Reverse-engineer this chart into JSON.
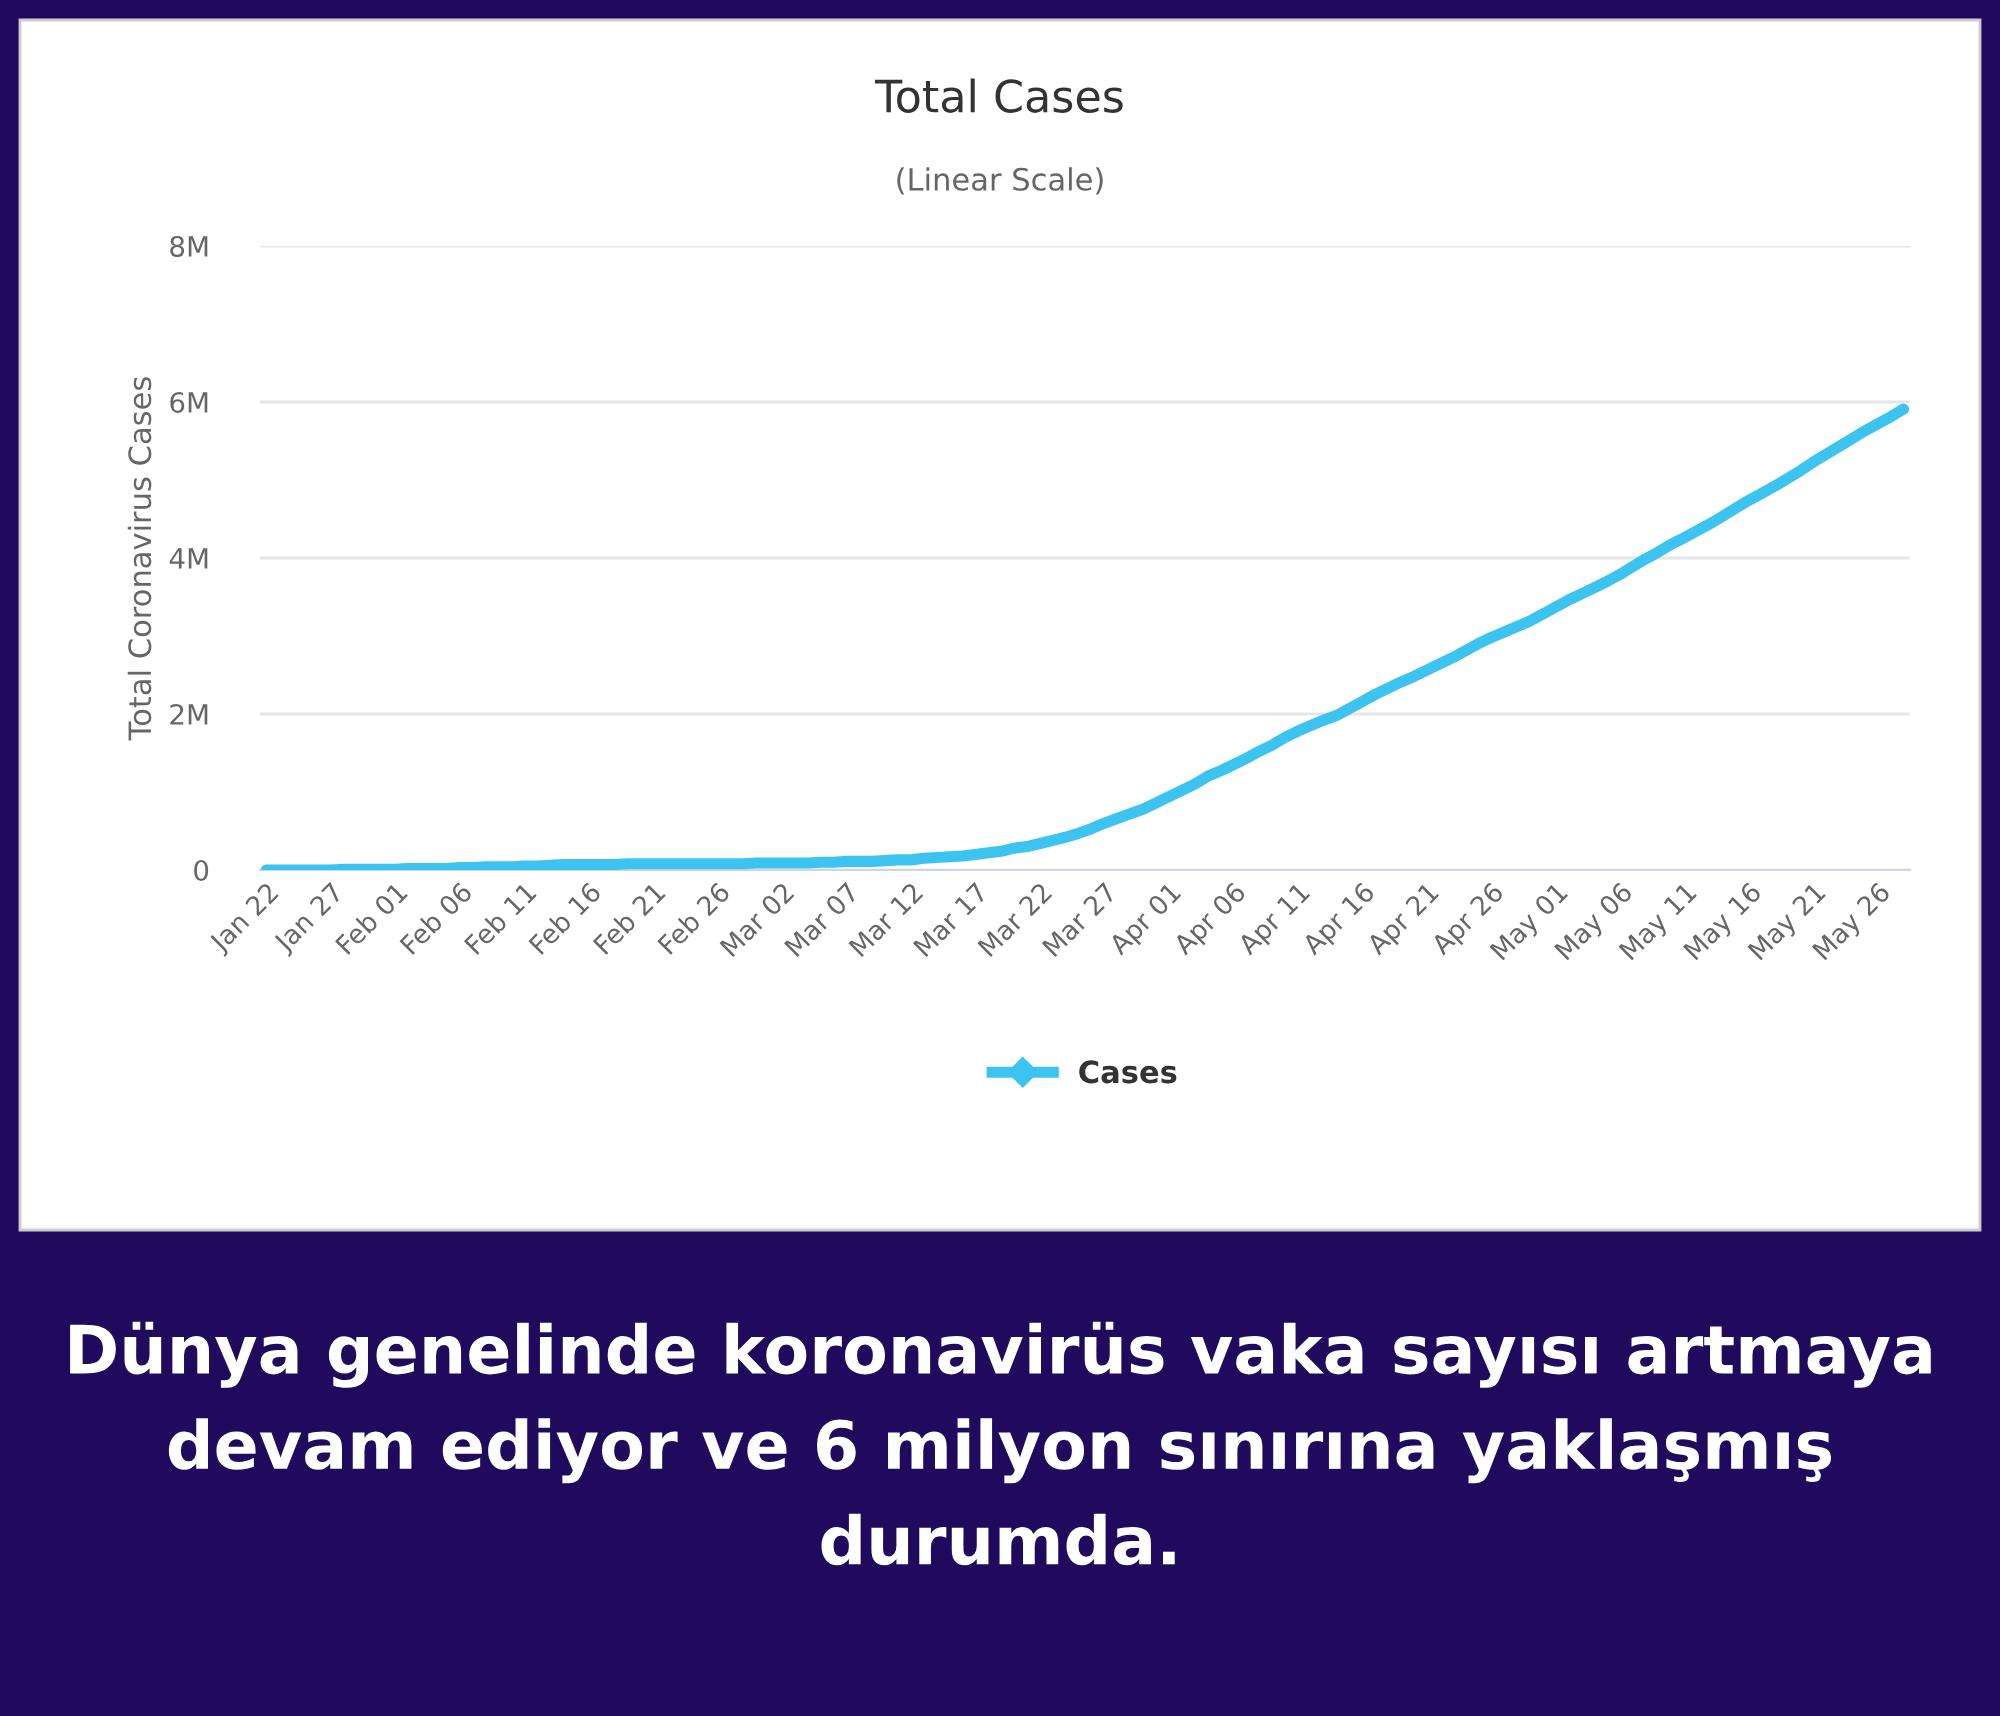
{
  "chart_data": {
    "type": "line",
    "title": "Total Cases",
    "subtitle": "(Linear Scale)",
    "ylabel": "Total Coronavirus Cases",
    "categories": [
      "Jan 22",
      null,
      null,
      null,
      null,
      "Jan 27",
      null,
      null,
      null,
      null,
      "Feb 01",
      null,
      null,
      null,
      null,
      "Feb 06",
      null,
      null,
      null,
      null,
      "Feb 11",
      null,
      null,
      null,
      null,
      "Feb 16",
      null,
      null,
      null,
      null,
      "Feb 21",
      null,
      null,
      null,
      null,
      "Feb 26",
      null,
      null,
      null,
      null,
      "Mar 02",
      null,
      null,
      null,
      null,
      "Mar 07",
      null,
      null,
      null,
      null,
      "Mar 12",
      null,
      null,
      null,
      null,
      "Mar 17",
      null,
      null,
      null,
      null,
      "Mar 22",
      null,
      null,
      null,
      null,
      "Mar 27",
      null,
      null,
      null,
      null,
      "Apr 01",
      null,
      null,
      null,
      null,
      "Apr 06",
      null,
      null,
      null,
      null,
      "Apr 11",
      null,
      null,
      null,
      null,
      "Apr 16",
      null,
      null,
      null,
      null,
      "Apr 21",
      null,
      null,
      null,
      null,
      "Apr 26",
      null,
      null,
      null,
      null,
      "May 01",
      null,
      null,
      null,
      null,
      "May 06",
      null,
      null,
      null,
      null,
      "May 11",
      null,
      null,
      null,
      null,
      "May 16",
      null,
      null,
      null,
      null,
      "May 21",
      null,
      null,
      null,
      null,
      "May 26",
      null,
      null
    ],
    "series": [
      {
        "name": "Cases",
        "color": "#3cc3f0",
        "values": [
          0.0,
          0.0,
          0.0,
          0.0,
          0.0,
          0.0,
          0.01,
          0.01,
          0.01,
          0.01,
          0.01,
          0.02,
          0.02,
          0.02,
          0.02,
          0.03,
          0.03,
          0.04,
          0.04,
          0.04,
          0.05,
          0.05,
          0.06,
          0.07,
          0.07,
          0.07,
          0.07,
          0.07,
          0.08,
          0.08,
          0.08,
          0.08,
          0.08,
          0.08,
          0.08,
          0.08,
          0.08,
          0.08,
          0.09,
          0.09,
          0.09,
          0.09,
          0.09,
          0.1,
          0.1,
          0.11,
          0.11,
          0.11,
          0.12,
          0.13,
          0.13,
          0.15,
          0.16,
          0.17,
          0.18,
          0.2,
          0.22,
          0.24,
          0.28,
          0.3,
          0.34,
          0.38,
          0.42,
          0.47,
          0.53,
          0.6,
          0.66,
          0.72,
          0.78,
          0.86,
          0.94,
          1.02,
          1.1,
          1.2,
          1.27,
          1.35,
          1.43,
          1.52,
          1.6,
          1.7,
          1.78,
          1.85,
          1.92,
          1.98,
          2.07,
          2.16,
          2.25,
          2.33,
          2.41,
          2.48,
          2.56,
          2.64,
          2.72,
          2.81,
          2.9,
          2.98,
          3.05,
          3.12,
          3.19,
          3.28,
          3.37,
          3.46,
          3.54,
          3.62,
          3.7,
          3.79,
          3.89,
          3.99,
          4.08,
          4.18,
          4.26,
          4.35,
          4.44,
          4.54,
          4.64,
          4.74,
          4.83,
          4.92,
          5.02,
          5.12,
          5.23,
          5.33,
          5.43,
          5.53,
          5.63,
          5.72,
          5.81,
          5.91
        ]
      }
    ],
    "ylim": [
      0,
      8
    ],
    "yticks": [
      0,
      {
        "value": 2,
        "label": "2M"
      },
      {
        "value": 4,
        "label": "4M"
      },
      {
        "value": 6,
        "label": "6M"
      },
      {
        "value": 8,
        "label": "8M"
      }
    ],
    "grid": "y",
    "legend": "bottom",
    "marker": "none",
    "line_style": "solid",
    "annotations": [
      "Dünya genelinde koronavirüs vaka sayısı artmaya devam ediyor ve 6 milyon sınırına yaklaşmış durumda."
    ]
  }
}
